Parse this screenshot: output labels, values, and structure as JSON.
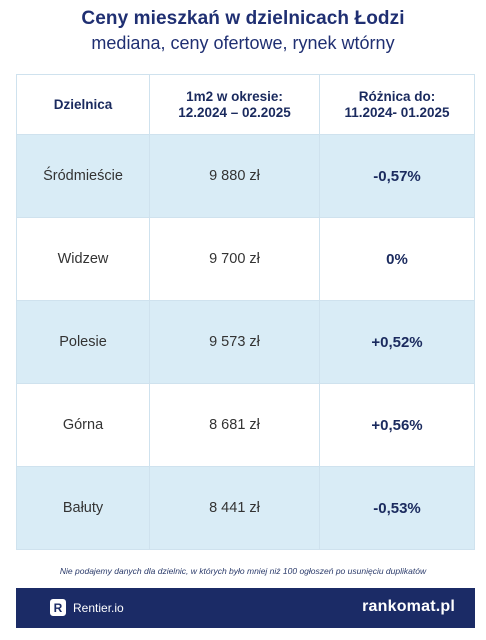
{
  "header": {
    "title": "Ceny mieszkań w dzielnicach Łodzi",
    "subtitle": "mediana, ceny ofertowe, rynek wtórny"
  },
  "table": {
    "columns": {
      "district": "Dzielnica",
      "price_line1": "1m2 w okresie:",
      "price_line2": "12.2024 – 02.2025",
      "diff_line1": "Różnica do:",
      "diff_line2": "11.2024- 01.2025"
    },
    "rows": [
      {
        "district": "Śródmieście",
        "price": "9 880 zł",
        "diff": "-0,57%"
      },
      {
        "district": "Widzew",
        "price": "9 700 zł",
        "diff": "0%"
      },
      {
        "district": "Polesie",
        "price": "9 573 zł",
        "diff": "+0,52%"
      },
      {
        "district": "Górna",
        "price": "8 681 zł",
        "diff": "+0,56%"
      },
      {
        "district": "Bałuty",
        "price": "8 441 zł",
        "diff": "-0,53%"
      }
    ]
  },
  "footnote": "Nie podajemy danych dla dzielnic, w których było mniej niż 100 ogłoszeń po usunięciu duplikatów",
  "footer": {
    "left_badge": "R",
    "left_brand": "Rentier.io",
    "right_brand": "rankomat.pl"
  },
  "colors": {
    "title": "#1f2f72",
    "row_shade": "#d9ecf6",
    "footer_bg": "#1b2b66"
  }
}
